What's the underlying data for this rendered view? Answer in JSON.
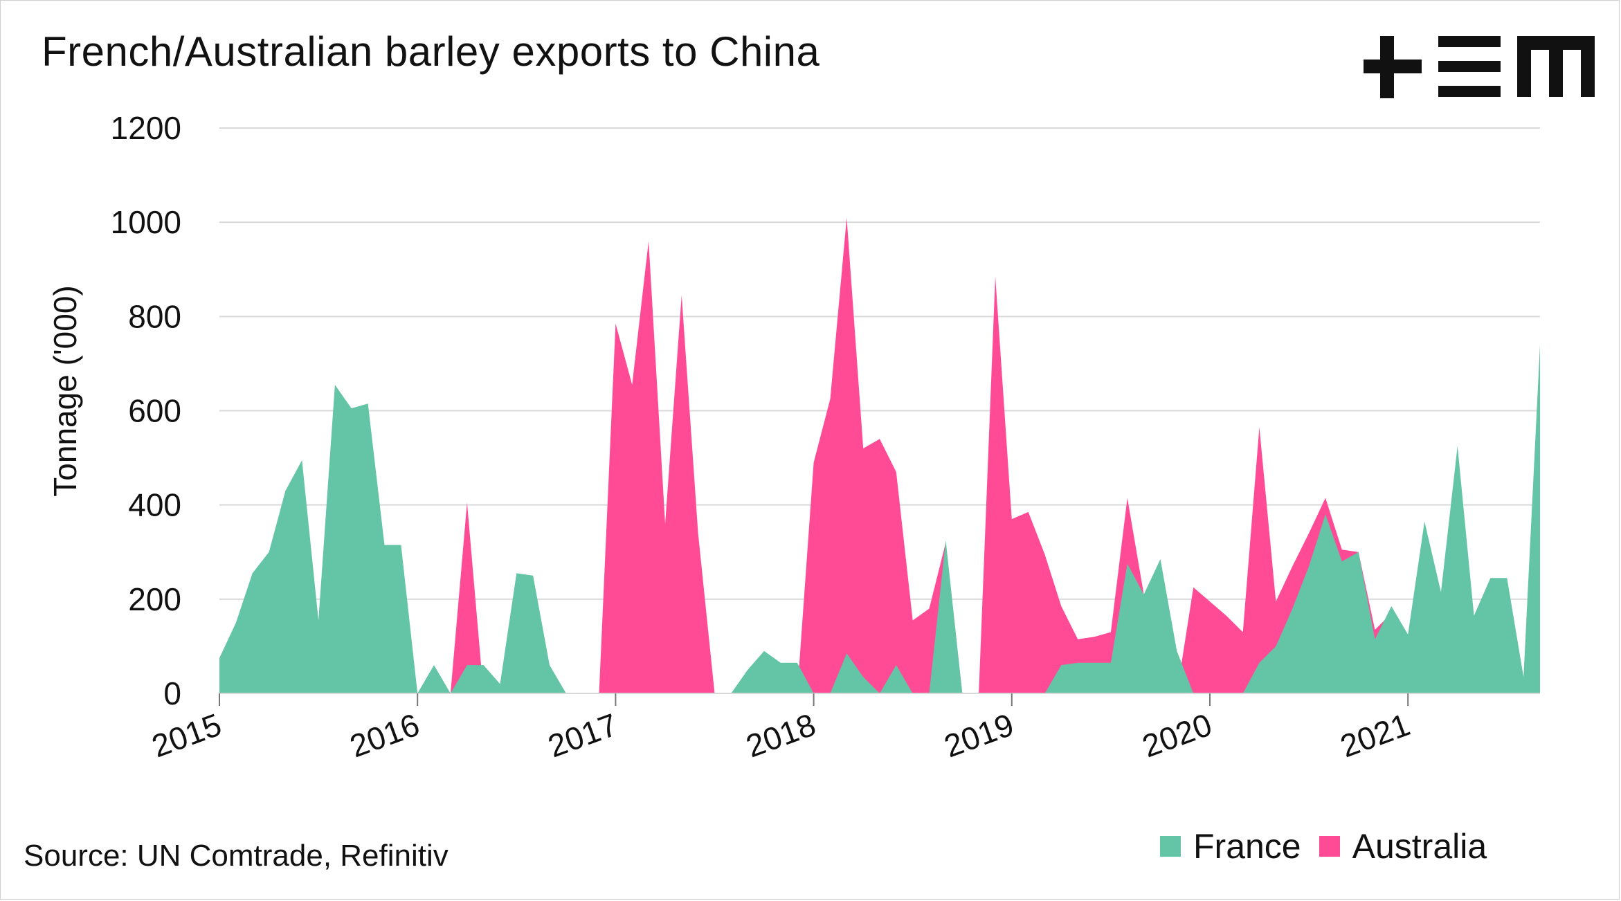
{
  "title": "French/Australian barley exports to China",
  "source": "Source: UN Comtrade, Refinitiv",
  "logo": {
    "name": "tem-logo-icon",
    "color": "#111111"
  },
  "colors": {
    "france": "#63c5a5",
    "australia": "#ff4a96",
    "grid": "#d9d9d9",
    "text": "#111111"
  },
  "chart_data": {
    "type": "area",
    "title": "French/Australian barley exports to China",
    "xlabel": "",
    "ylabel": "Tonnage ('000)",
    "ylim": [
      0,
      1200
    ],
    "yticks": [
      "0",
      "200",
      "400",
      "600",
      "800",
      "1000",
      "1200"
    ],
    "xlim": [
      "2015-01",
      "2021-09"
    ],
    "xticks": [
      "2015",
      "2016",
      "2017",
      "2018",
      "2019",
      "2020",
      "2021"
    ],
    "grid": true,
    "legend_placement": "bottom-right",
    "series": [
      {
        "name": "France",
        "color": "#63c5a5",
        "points": [
          [
            "2015-01",
            75
          ],
          [
            "2015-02",
            150
          ],
          [
            "2015-03",
            255
          ],
          [
            "2015-04",
            300
          ],
          [
            "2015-05",
            430
          ],
          [
            "2015-06",
            495
          ],
          [
            "2015-07",
            155
          ],
          [
            "2015-08",
            655
          ],
          [
            "2015-09",
            605
          ],
          [
            "2015-10",
            615
          ],
          [
            "2015-11",
            315
          ],
          [
            "2015-12",
            315
          ],
          [
            "2016-01",
            0
          ],
          [
            "2016-02",
            60
          ],
          [
            "2016-03",
            0
          ],
          [
            "2016-04",
            60
          ],
          [
            "2016-05",
            60
          ],
          [
            "2016-06",
            20
          ],
          [
            "2016-07",
            255
          ],
          [
            "2016-08",
            250
          ],
          [
            "2016-09",
            60
          ],
          [
            "2016-10",
            0
          ],
          [
            "2016-11",
            0
          ],
          [
            "2016-12",
            0
          ],
          [
            "2017-01",
            0
          ],
          [
            "2017-02",
            0
          ],
          [
            "2017-03",
            0
          ],
          [
            "2017-04",
            0
          ],
          [
            "2017-05",
            0
          ],
          [
            "2017-06",
            0
          ],
          [
            "2017-07",
            0
          ],
          [
            "2017-08",
            0
          ],
          [
            "2017-09",
            50
          ],
          [
            "2017-10",
            90
          ],
          [
            "2017-11",
            65
          ],
          [
            "2017-12",
            65
          ],
          [
            "2018-01",
            0
          ],
          [
            "2018-02",
            0
          ],
          [
            "2018-03",
            85
          ],
          [
            "2018-04",
            35
          ],
          [
            "2018-05",
            0
          ],
          [
            "2018-06",
            60
          ],
          [
            "2018-07",
            0
          ],
          [
            "2018-08",
            0
          ],
          [
            "2018-09",
            325
          ],
          [
            "2018-10",
            0
          ],
          [
            "2018-11",
            0
          ],
          [
            "2018-12",
            0
          ],
          [
            "2019-01",
            0
          ],
          [
            "2019-02",
            0
          ],
          [
            "2019-03",
            0
          ],
          [
            "2019-04",
            60
          ],
          [
            "2019-05",
            65
          ],
          [
            "2019-06",
            65
          ],
          [
            "2019-07",
            65
          ],
          [
            "2019-08",
            275
          ],
          [
            "2019-09",
            210
          ],
          [
            "2019-10",
            285
          ],
          [
            "2019-11",
            90
          ],
          [
            "2019-12",
            0
          ],
          [
            "2020-01",
            0
          ],
          [
            "2020-02",
            0
          ],
          [
            "2020-03",
            0
          ],
          [
            "2020-04",
            65
          ],
          [
            "2020-05",
            100
          ],
          [
            "2020-06",
            180
          ],
          [
            "2020-07",
            270
          ],
          [
            "2020-08",
            380
          ],
          [
            "2020-09",
            280
          ],
          [
            "2020-10",
            300
          ],
          [
            "2020-11",
            115
          ],
          [
            "2020-12",
            185
          ],
          [
            "2021-01",
            125
          ],
          [
            "2021-02",
            365
          ],
          [
            "2021-03",
            215
          ],
          [
            "2021-04",
            525
          ],
          [
            "2021-05",
            165
          ],
          [
            "2021-06",
            245
          ],
          [
            "2021-07",
            245
          ],
          [
            "2021-08",
            35
          ],
          [
            "2021-09",
            740
          ]
        ]
      },
      {
        "name": "Australia",
        "color": "#ff4a96",
        "points": [
          [
            "2015-01",
            0
          ],
          [
            "2015-02",
            0
          ],
          [
            "2015-03",
            0
          ],
          [
            "2015-04",
            0
          ],
          [
            "2015-05",
            0
          ],
          [
            "2015-06",
            0
          ],
          [
            "2015-07",
            0
          ],
          [
            "2015-08",
            0
          ],
          [
            "2015-09",
            0
          ],
          [
            "2015-10",
            0
          ],
          [
            "2015-11",
            0
          ],
          [
            "2015-12",
            0
          ],
          [
            "2016-01",
            0
          ],
          [
            "2016-02",
            0
          ],
          [
            "2016-03",
            0
          ],
          [
            "2016-04",
            405
          ],
          [
            "2016-05",
            0
          ],
          [
            "2016-06",
            0
          ],
          [
            "2016-07",
            0
          ],
          [
            "2016-08",
            0
          ],
          [
            "2016-09",
            0
          ],
          [
            "2016-10",
            0
          ],
          [
            "2016-11",
            0
          ],
          [
            "2016-12",
            0
          ],
          [
            "2017-01",
            785
          ],
          [
            "2017-02",
            655
          ],
          [
            "2017-03",
            960
          ],
          [
            "2017-04",
            360
          ],
          [
            "2017-05",
            845
          ],
          [
            "2017-06",
            340
          ],
          [
            "2017-07",
            0
          ],
          [
            "2017-08",
            0
          ],
          [
            "2017-09",
            0
          ],
          [
            "2017-10",
            0
          ],
          [
            "2017-11",
            0
          ],
          [
            "2017-12",
            0
          ],
          [
            "2018-01",
            490
          ],
          [
            "2018-02",
            625
          ],
          [
            "2018-03",
            1010
          ],
          [
            "2018-04",
            520
          ],
          [
            "2018-05",
            540
          ],
          [
            "2018-06",
            470
          ],
          [
            "2018-07",
            155
          ],
          [
            "2018-08",
            180
          ],
          [
            "2018-09",
            320
          ],
          [
            "2018-10",
            0
          ],
          [
            "2018-11",
            0
          ],
          [
            "2018-12",
            885
          ],
          [
            "2019-01",
            370
          ],
          [
            "2019-02",
            385
          ],
          [
            "2019-03",
            295
          ],
          [
            "2019-04",
            185
          ],
          [
            "2019-05",
            115
          ],
          [
            "2019-06",
            120
          ],
          [
            "2019-07",
            130
          ],
          [
            "2019-08",
            415
          ],
          [
            "2019-09",
            210
          ],
          [
            "2019-10",
            0
          ],
          [
            "2019-11",
            0
          ],
          [
            "2019-12",
            225
          ],
          [
            "2020-01",
            195
          ],
          [
            "2020-02",
            165
          ],
          [
            "2020-03",
            130
          ],
          [
            "2020-04",
            565
          ],
          [
            "2020-05",
            195
          ],
          [
            "2020-06",
            270
          ],
          [
            "2020-07",
            340
          ],
          [
            "2020-08",
            415
          ],
          [
            "2020-09",
            305
          ],
          [
            "2020-10",
            300
          ],
          [
            "2020-11",
            135
          ],
          [
            "2020-12",
            170
          ],
          [
            "2021-01",
            0
          ],
          [
            "2021-02",
            0
          ],
          [
            "2021-03",
            0
          ],
          [
            "2021-04",
            0
          ],
          [
            "2021-05",
            0
          ],
          [
            "2021-06",
            0
          ],
          [
            "2021-07",
            0
          ],
          [
            "2021-08",
            0
          ],
          [
            "2021-09",
            0
          ]
        ]
      }
    ]
  }
}
